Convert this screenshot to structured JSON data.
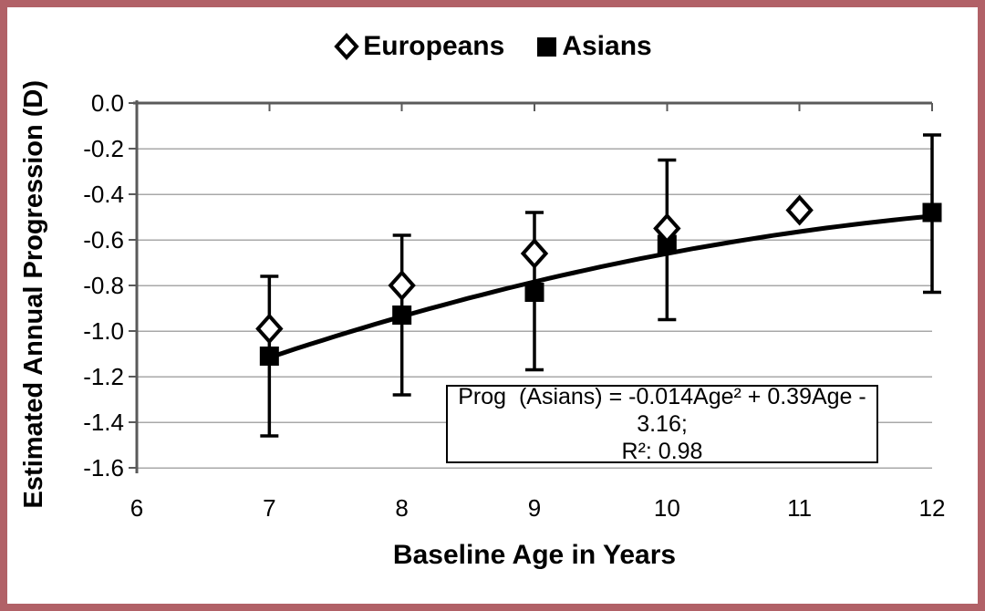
{
  "colors": {
    "frame_border": "#b16167",
    "background": "#ffffff",
    "gridline": "#a8a8a8",
    "axis": "#5a5a5a",
    "data": "#000000",
    "marker_fill_european": "#ffffff",
    "annotation_border": "#000000"
  },
  "legend": {
    "items": [
      {
        "label": "Europeans",
        "marker": "open-diamond"
      },
      {
        "label": "Asians",
        "marker": "filled-square"
      }
    ]
  },
  "chart_data": {
    "type": "scatter",
    "title": "",
    "xlabel": "Baseline Age in Years",
    "ylabel": "Estimated Annual Progression (D)",
    "xlim": [
      6,
      12
    ],
    "ylim": [
      -1.6,
      0.0
    ],
    "x_ticks": [
      6,
      7,
      8,
      9,
      10,
      11,
      12
    ],
    "y_ticks": [
      0.0,
      -0.2,
      -0.4,
      -0.6,
      -0.8,
      -1.0,
      -1.2,
      -1.4,
      -1.6
    ],
    "y_tick_labels": [
      "0.0",
      "-0.2",
      "-0.4",
      "-0.6",
      "-0.8",
      "-1.0",
      "-1.2",
      "-1.4",
      "-1.6"
    ],
    "grid": "horizontal",
    "legend_position": "top-center",
    "series": [
      {
        "name": "Europeans",
        "marker": "open-diamond",
        "x": [
          7,
          8,
          9,
          10,
          11
        ],
        "y": [
          -0.99,
          -0.8,
          -0.66,
          -0.55,
          -0.47
        ]
      },
      {
        "name": "Asians",
        "marker": "filled-square",
        "x": [
          7,
          8,
          9,
          10,
          12
        ],
        "y": [
          -1.11,
          -0.93,
          -0.83,
          -0.62,
          -0.48
        ],
        "error_bars": [
          {
            "x": 7,
            "top": -0.76,
            "bottom": -1.46
          },
          {
            "x": 8,
            "top": -0.58,
            "bottom": -1.28
          },
          {
            "x": 9,
            "top": -0.48,
            "bottom": -1.17
          },
          {
            "x": 10,
            "top": -0.25,
            "bottom": -0.95
          },
          {
            "x": 12,
            "top": -0.14,
            "bottom": -0.83
          }
        ]
      }
    ],
    "trendline": {
      "applies_to": "Asians",
      "type": "quadratic",
      "coefficients": {
        "a": -0.014,
        "b": 0.39,
        "c": -3.16
      },
      "x_range": [
        7,
        12
      ],
      "r_squared": 0.98
    },
    "annotation": {
      "line1": "Prog  (Asians) = -0.014Age² + 0.39Age - 3.16;",
      "line2": "R²: 0.98"
    }
  }
}
